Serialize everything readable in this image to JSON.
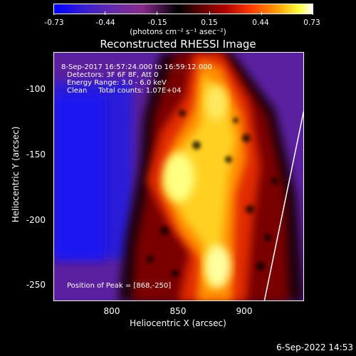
{
  "colorbar": {
    "ticks": [
      "-0.73",
      "-0.44",
      "-0.15",
      "0.15",
      "0.44",
      "0.73"
    ],
    "units": "(photons cm⁻² s⁻¹ asec⁻²)"
  },
  "title": "Reconstructed RHESSI Image",
  "info": {
    "line1": "8-Sep-2017 16:57:24.000 to 16:59:12.000",
    "line2": "Detectors: 3F 6F 8F, Att 0",
    "line3": "Energy Range: 3.0 - 6.0 keV",
    "line4": "Clean     Total counts: 1.07E+04",
    "peak": "Position of Peak = [868,-250]"
  },
  "axes": {
    "xlabel": "Heliocentric X (arcsec)",
    "ylabel": "Heliocentric Y (arcsec)",
    "xticks": [
      "800",
      "850",
      "900"
    ],
    "yticks": [
      "-100",
      "-150",
      "-200",
      "-250"
    ]
  },
  "datestamp": "6-Sep-2022 14:53",
  "chart_data": {
    "type": "heatmap",
    "title": "Reconstructed RHESSI Image",
    "xlabel": "Heliocentric X (arcsec)",
    "ylabel": "Heliocentric Y (arcsec)",
    "colorbar_range": [
      -0.73,
      0.73
    ],
    "peak": [
      868,
      -250
    ]
  }
}
